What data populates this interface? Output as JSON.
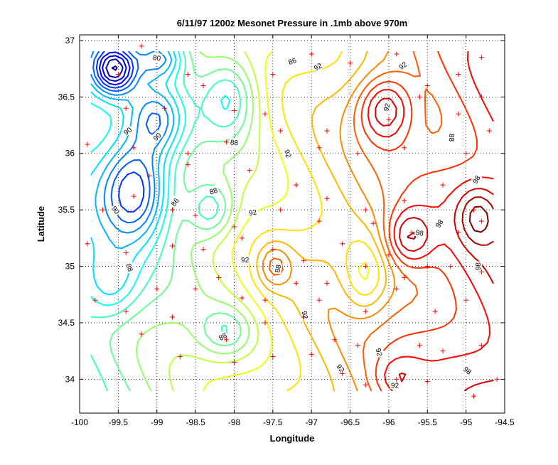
{
  "chart_data": {
    "type": "contour",
    "title": "6/11/97 1200z Mesonet Pressure in .1mb above 970m",
    "xlabel": "Longitude",
    "ylabel": "Latitude",
    "xlim": [
      -100,
      -94.5
    ],
    "ylim": [
      33.7,
      37.05
    ],
    "xticks": [
      -100,
      -99.5,
      -99,
      -98.5,
      -98,
      -97.5,
      -97,
      -96.5,
      -96,
      -95.5,
      -95,
      -94.5
    ],
    "yticks": [
      34,
      34.5,
      35,
      35.5,
      36,
      36.5,
      37
    ],
    "xtick_labels": [
      "-100",
      "-99.5",
      "-99",
      "-98.5",
      "-98",
      "-97.5",
      "-97",
      "-96.5",
      "-96",
      "-95.5",
      "-95",
      "-94.5"
    ],
    "ytick_labels": [
      "34",
      "34.5",
      "35",
      "35.5",
      "36",
      "36.5",
      "37"
    ],
    "grid": true,
    "colormap": [
      "#00008f",
      "#0000ff",
      "#007fff",
      "#00ffff",
      "#7fff7f",
      "#ffff00",
      "#ff7f00",
      "#ff0000",
      "#7f0000"
    ],
    "contour_levels": [
      77,
      78,
      79,
      80,
      81,
      82,
      83,
      84,
      85,
      86,
      87,
      88,
      89,
      90,
      91,
      92,
      93,
      94,
      95,
      96,
      97,
      98,
      99,
      100
    ],
    "contour_labels": [
      {
        "text": "80",
        "lon": -99.0,
        "lat": 36.85,
        "rot": 10
      },
      {
        "text": "86",
        "lon": -97.25,
        "lat": 36.82,
        "rot": -20
      },
      {
        "text": "92",
        "lon": -96.92,
        "lat": 36.77,
        "rot": -30
      },
      {
        "text": "92",
        "lon": -95.82,
        "lat": 36.78,
        "rot": -35
      },
      {
        "text": "90",
        "lon": -99.38,
        "lat": 36.2,
        "rot": -35
      },
      {
        "text": "90",
        "lon": -99.0,
        "lat": 36.15,
        "rot": -45
      },
      {
        "text": "88",
        "lon": -98.0,
        "lat": 36.1,
        "rot": 5
      },
      {
        "text": "92",
        "lon": -97.3,
        "lat": 36.0,
        "rot": 70
      },
      {
        "text": "92",
        "lon": -96.03,
        "lat": 36.41,
        "rot": -75
      },
      {
        "text": "88",
        "lon": -95.18,
        "lat": 36.14,
        "rot": 90
      },
      {
        "text": "88",
        "lon": -98.27,
        "lat": 35.67,
        "rot": -20
      },
      {
        "text": "86",
        "lon": -98.77,
        "lat": 35.57,
        "rot": -55
      },
      {
        "text": "90",
        "lon": -99.53,
        "lat": 35.5,
        "rot": 50
      },
      {
        "text": "92",
        "lon": -97.76,
        "lat": 35.48,
        "rot": -10
      },
      {
        "text": "98",
        "lon": -94.87,
        "lat": 35.77,
        "rot": -60
      },
      {
        "text": "98",
        "lon": -95.6,
        "lat": 35.3,
        "rot": 10
      },
      {
        "text": "98",
        "lon": -95.35,
        "lat": 35.38,
        "rot": -60
      },
      {
        "text": "92",
        "lon": -97.86,
        "lat": 35.06,
        "rot": 0
      },
      {
        "text": "88",
        "lon": -97.44,
        "lat": 34.98,
        "rot": -80
      },
      {
        "text": "88",
        "lon": -99.35,
        "lat": 34.99,
        "rot": 70
      },
      {
        "text": "98",
        "lon": -94.85,
        "lat": 35.0,
        "rot": -90
      },
      {
        "text": "92",
        "lon": -97.08,
        "lat": 34.57,
        "rot": 80
      },
      {
        "text": "88",
        "lon": -98.15,
        "lat": 34.38,
        "rot": -30
      },
      {
        "text": "92",
        "lon": -96.12,
        "lat": 34.24,
        "rot": 75
      },
      {
        "text": "92",
        "lon": -96.62,
        "lat": 34.1,
        "rot": 55
      },
      {
        "text": "92",
        "lon": -95.92,
        "lat": 33.95,
        "rot": 0
      },
      {
        "text": "98",
        "lon": -94.98,
        "lat": 34.08,
        "rot": 40
      }
    ],
    "stations": [
      [
        -99.2,
        36.95
      ],
      [
        -99.5,
        36.7
      ],
      [
        -98.6,
        36.7
      ],
      [
        -98.4,
        36.6
      ],
      [
        -97.5,
        36.7
      ],
      [
        -97.0,
        36.88
      ],
      [
        -96.5,
        36.8
      ],
      [
        -95.9,
        36.88
      ],
      [
        -95.5,
        36.6
      ],
      [
        -95.1,
        36.7
      ],
      [
        -94.8,
        36.85
      ],
      [
        -94.8,
        36.5
      ],
      [
        -99.4,
        36.4
      ],
      [
        -98.9,
        36.4
      ],
      [
        -98.0,
        36.38
      ],
      [
        -97.6,
        36.35
      ],
      [
        -96.8,
        36.2
      ],
      [
        -96.0,
        36.3
      ],
      [
        -95.6,
        36.5
      ],
      [
        -95.1,
        36.35
      ],
      [
        -94.7,
        36.2
      ],
      [
        -99.9,
        36.08
      ],
      [
        -99.3,
        36.05
      ],
      [
        -98.6,
        36.0
      ],
      [
        -98.1,
        36.1
      ],
      [
        -97.4,
        36.2
      ],
      [
        -96.9,
        36.05
      ],
      [
        -96.4,
        36.0
      ],
      [
        -95.8,
        36.05
      ],
      [
        -95.0,
        36.0
      ],
      [
        -99.1,
        35.8
      ],
      [
        -98.6,
        35.9
      ],
      [
        -97.8,
        35.85
      ],
      [
        -97.2,
        35.72
      ],
      [
        -96.8,
        35.6
      ],
      [
        -96.3,
        35.5
      ],
      [
        -95.8,
        35.58
      ],
      [
        -95.3,
        35.72
      ],
      [
        -94.9,
        35.5
      ],
      [
        -99.7,
        35.5
      ],
      [
        -99.3,
        35.62
      ],
      [
        -98.8,
        35.5
      ],
      [
        -98.5,
        35.45
      ],
      [
        -98.0,
        35.35
      ],
      [
        -97.4,
        35.5
      ],
      [
        -96.9,
        35.4
      ],
      [
        -96.6,
        35.2
      ],
      [
        -96.2,
        35.38
      ],
      [
        -95.7,
        35.3
      ],
      [
        -95.1,
        35.3
      ],
      [
        -94.8,
        35.4
      ],
      [
        -99.9,
        35.2
      ],
      [
        -99.4,
        35.12
      ],
      [
        -98.8,
        35.18
      ],
      [
        -98.4,
        35.15
      ],
      [
        -97.9,
        35.25
      ],
      [
        -97.5,
        35.15
      ],
      [
        -97.1,
        35.05
      ],
      [
        -96.8,
        34.85
      ],
      [
        -96.3,
        35.0
      ],
      [
        -96.0,
        35.1
      ],
      [
        -95.8,
        34.9
      ],
      [
        -95.5,
        35.0
      ],
      [
        -95.2,
        35.0
      ],
      [
        -94.8,
        34.95
      ],
      [
        -99.8,
        34.7
      ],
      [
        -99.4,
        34.6
      ],
      [
        -99.0,
        34.8
      ],
      [
        -98.5,
        34.8
      ],
      [
        -98.2,
        34.9
      ],
      [
        -97.9,
        34.72
      ],
      [
        -97.6,
        34.7
      ],
      [
        -97.2,
        34.85
      ],
      [
        -96.9,
        34.7
      ],
      [
        -96.3,
        34.6
      ],
      [
        -95.9,
        34.8
      ],
      [
        -95.4,
        34.6
      ],
      [
        -95.0,
        34.7
      ],
      [
        -99.2,
        34.4
      ],
      [
        -98.8,
        34.55
      ],
      [
        -98.1,
        34.35
      ],
      [
        -97.6,
        34.5
      ],
      [
        -97.1,
        34.55
      ],
      [
        -96.7,
        34.35
      ],
      [
        -96.4,
        34.3
      ],
      [
        -95.6,
        34.3
      ],
      [
        -95.3,
        34.25
      ],
      [
        -94.8,
        34.3
      ],
      [
        -98.7,
        34.2
      ],
      [
        -98.0,
        34.15
      ],
      [
        -97.5,
        34.2
      ],
      [
        -97.0,
        34.22
      ],
      [
        -96.6,
        34.05
      ],
      [
        -96.3,
        33.95
      ],
      [
        -95.9,
        34.0
      ],
      [
        -95.5,
        33.98
      ],
      [
        -94.9,
        33.85
      ],
      [
        -94.6,
        34.0
      ]
    ]
  }
}
